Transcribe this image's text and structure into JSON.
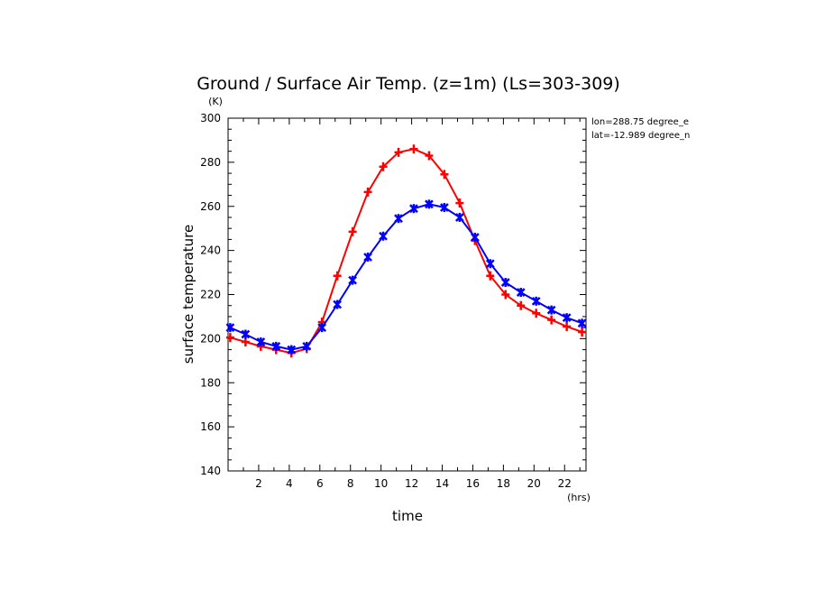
{
  "chart_data": {
    "type": "line",
    "title": "Ground / Surface Air Temp. (z=1m) (Ls=303-309)",
    "xlabel": "time",
    "ylabel": "surface temperature",
    "x_unit": "(hrs)",
    "y_unit": "(K)",
    "xlim": [
      0,
      23.4
    ],
    "ylim": [
      140,
      300
    ],
    "xticks": [
      2,
      4,
      6,
      8,
      10,
      12,
      14,
      16,
      18,
      20,
      22
    ],
    "yticks": [
      140,
      160,
      180,
      200,
      220,
      240,
      260,
      280,
      300
    ],
    "annotations": [
      "lon=288.75 degree_e",
      "lat=-12.989 degree_n"
    ],
    "x": [
      0.14,
      1.14,
      2.14,
      3.14,
      4.14,
      5.14,
      6.14,
      7.14,
      8.14,
      9.14,
      10.14,
      11.14,
      12.14,
      13.14,
      14.14,
      15.14,
      16.14,
      17.14,
      18.14,
      19.14,
      20.14,
      21.14,
      22.14,
      23.14
    ],
    "series": [
      {
        "color": "#ff0000",
        "marker": "plus",
        "values": [
          200.5,
          198.5,
          196.5,
          195,
          193.5,
          195.5,
          207.5,
          228.5,
          248.5,
          266.5,
          278,
          284.5,
          286,
          283,
          274.5,
          261.5,
          244.5,
          228.5,
          220,
          215,
          211.5,
          208.5,
          205.5,
          203
        ]
      },
      {
        "color": "#0000ff",
        "marker": "x",
        "values": [
          205,
          202,
          198.5,
          196.5,
          195,
          196.5,
          205,
          215.5,
          226.5,
          237,
          246.5,
          254.5,
          259,
          261,
          259.5,
          255,
          246,
          234,
          225.5,
          221,
          217,
          213,
          209.5,
          207
        ]
      }
    ],
    "grid": false,
    "legend": "none"
  }
}
